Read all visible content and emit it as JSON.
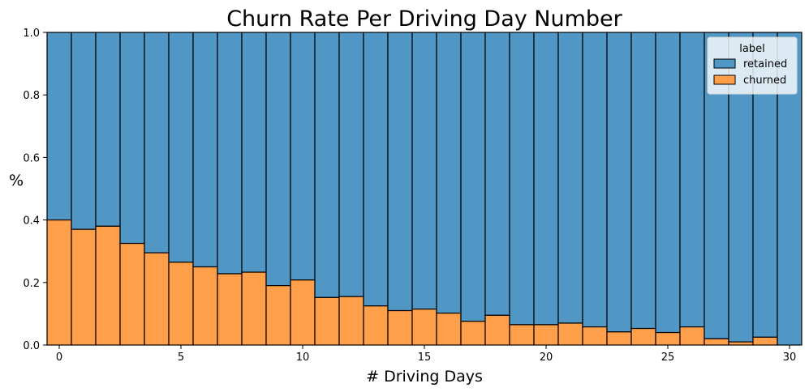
{
  "chart_data": {
    "type": "bar",
    "stacking": "fill",
    "title": "Churn Rate Per Driving Day Number",
    "xlabel": "# Driving Days",
    "ylabel": "%",
    "xlim": [
      -0.5,
      30.5
    ],
    "ylim": [
      0,
      1
    ],
    "x_ticks": [
      "0",
      "5",
      "10",
      "15",
      "20",
      "25",
      "30"
    ],
    "y_ticks": [
      "0.0",
      "0.2",
      "0.4",
      "0.6",
      "0.8",
      "1.0"
    ],
    "x": [
      0,
      1,
      2,
      3,
      4,
      5,
      6,
      7,
      8,
      9,
      10,
      11,
      12,
      13,
      14,
      15,
      16,
      17,
      18,
      19,
      20,
      21,
      22,
      23,
      24,
      25,
      26,
      27,
      28,
      29,
      30
    ],
    "series": [
      {
        "name": "churned",
        "color": "#ff9f4a",
        "values": [
          0.4,
          0.37,
          0.38,
          0.325,
          0.295,
          0.265,
          0.25,
          0.228,
          0.233,
          0.19,
          0.208,
          0.152,
          0.155,
          0.125,
          0.11,
          0.115,
          0.102,
          0.076,
          0.095,
          0.065,
          0.065,
          0.07,
          0.058,
          0.042,
          0.053,
          0.04,
          0.058,
          0.02,
          0.01,
          0.025,
          0.0
        ]
      },
      {
        "name": "retained",
        "color": "#5197c6",
        "values": [
          0.6,
          0.63,
          0.62,
          0.675,
          0.705,
          0.735,
          0.75,
          0.772,
          0.767,
          0.81,
          0.792,
          0.848,
          0.845,
          0.875,
          0.89,
          0.885,
          0.898,
          0.924,
          0.905,
          0.935,
          0.935,
          0.93,
          0.942,
          0.958,
          0.947,
          0.96,
          0.942,
          0.98,
          0.99,
          0.975,
          1.0
        ]
      }
    ],
    "legend": {
      "title": "label",
      "position": "top-right",
      "entries": [
        "retained",
        "churned"
      ]
    },
    "grid": false
  }
}
